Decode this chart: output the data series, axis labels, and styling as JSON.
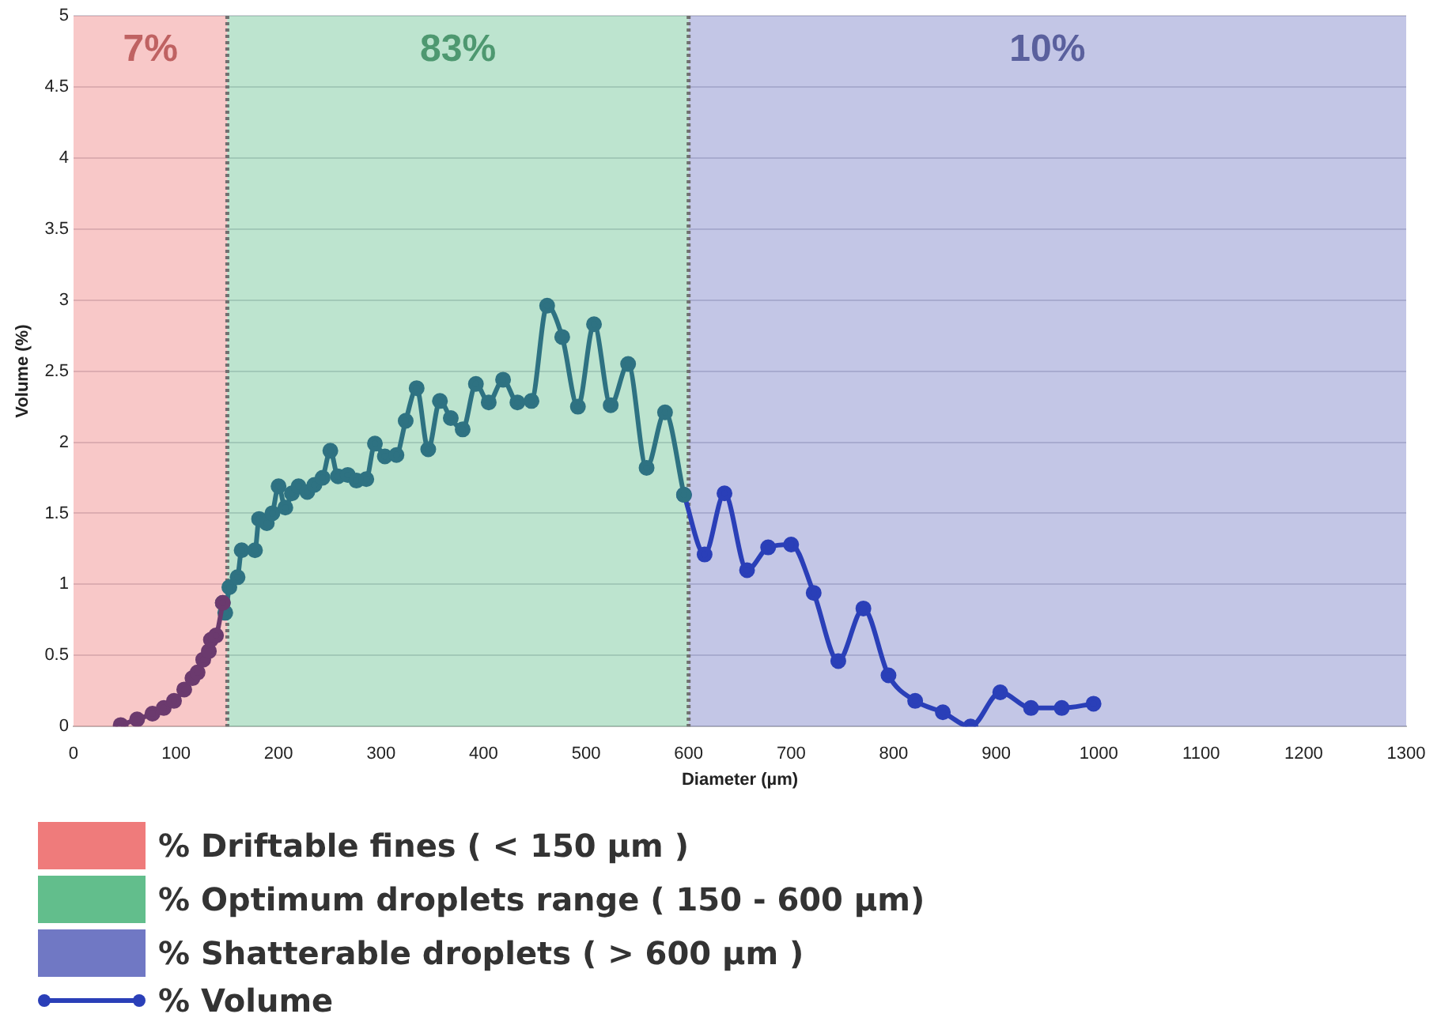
{
  "chart_data": {
    "type": "line",
    "xlabel": "Diameter (µm)",
    "ylabel": "Volume (%)",
    "xlim": [
      0,
      1300
    ],
    "xticks": [
      0,
      100,
      200,
      300,
      400,
      500,
      600,
      700,
      800,
      900,
      1000,
      1100,
      1200,
      1300
    ],
    "ylim": [
      0,
      5
    ],
    "yticks": [
      0,
      0.5,
      1,
      1.5,
      2,
      2.5,
      3,
      3.5,
      4,
      4.5,
      5
    ],
    "grid": "y",
    "marker": "circle",
    "line_style": "solid",
    "legend": "bottom",
    "series": [
      {
        "color": "#6b3a6e",
        "x": [
          46,
          62,
          77,
          88,
          98,
          108,
          116,
          121,
          126.5,
          132,
          134,
          139,
          145.6
        ],
        "values": [
          0.01,
          0.05,
          0.09,
          0.13,
          0.18,
          0.26,
          0.34,
          0.38,
          0.47,
          0.53,
          0.61,
          0.64,
          0.87
        ]
      },
      {
        "color": "#2e7282",
        "x": [
          145.6,
          148,
          152,
          160,
          164,
          177,
          181,
          188.5,
          194,
          200,
          206.6,
          213,
          219.5,
          228,
          235,
          243,
          250.5,
          258,
          267.5,
          276,
          285.6,
          294,
          303.7,
          315,
          324,
          334.7,
          346,
          357.4,
          368,
          379.6,
          392.5,
          405,
          419,
          433,
          446.7,
          462,
          476.7,
          492,
          507.7,
          524,
          541,
          559,
          577,
          595.5
        ],
        "values": [
          0.87,
          0.8,
          0.98,
          1.05,
          1.24,
          1.24,
          1.46,
          1.43,
          1.5,
          1.69,
          1.54,
          1.64,
          1.69,
          1.65,
          1.7,
          1.75,
          1.94,
          1.76,
          1.77,
          1.73,
          1.74,
          1.99,
          1.9,
          1.91,
          2.15,
          2.38,
          1.95,
          2.29,
          2.17,
          2.09,
          2.41,
          2.28,
          2.44,
          2.28,
          2.29,
          2.96,
          2.74,
          2.25,
          2.83,
          2.26,
          2.55,
          1.82,
          2.21,
          1.63
        ]
      },
      {
        "name": "% Volume",
        "color": "#2a3fb8",
        "x": [
          595.5,
          615.6,
          635,
          657,
          677.6,
          700,
          722,
          746,
          770.5,
          795,
          821,
          848,
          875,
          904,
          934,
          964,
          995
        ],
        "values": [
          1.63,
          1.21,
          1.64,
          1.1,
          1.26,
          1.28,
          0.94,
          0.46,
          0.83,
          0.36,
          0.18,
          0.1,
          0,
          0.24,
          0.13,
          0.13,
          0.16
        ]
      }
    ],
    "bands": [
      {
        "axis": "x",
        "from": 0,
        "to": 150,
        "label": "% Driftable fines ( < 150 µm )",
        "color": "#ef7b7b"
      },
      {
        "axis": "x",
        "from": 150,
        "to": 600,
        "label": "% Optimum droplets range ( 150 - 600 µm)",
        "color": "#62be8c"
      },
      {
        "axis": "x",
        "from": 600,
        "to": 1300,
        "label": "% Shatterable droplets ( > 600 µm )",
        "color": "#7078c4"
      }
    ],
    "ref_lines": [
      {
        "axis": "x",
        "value": 150,
        "color": "#707070",
        "line_style": "dotted"
      },
      {
        "axis": "x",
        "value": 600,
        "color": "#707070",
        "line_style": "dotted"
      }
    ],
    "annotations": [
      "7%",
      "83%",
      "10%"
    ]
  }
}
